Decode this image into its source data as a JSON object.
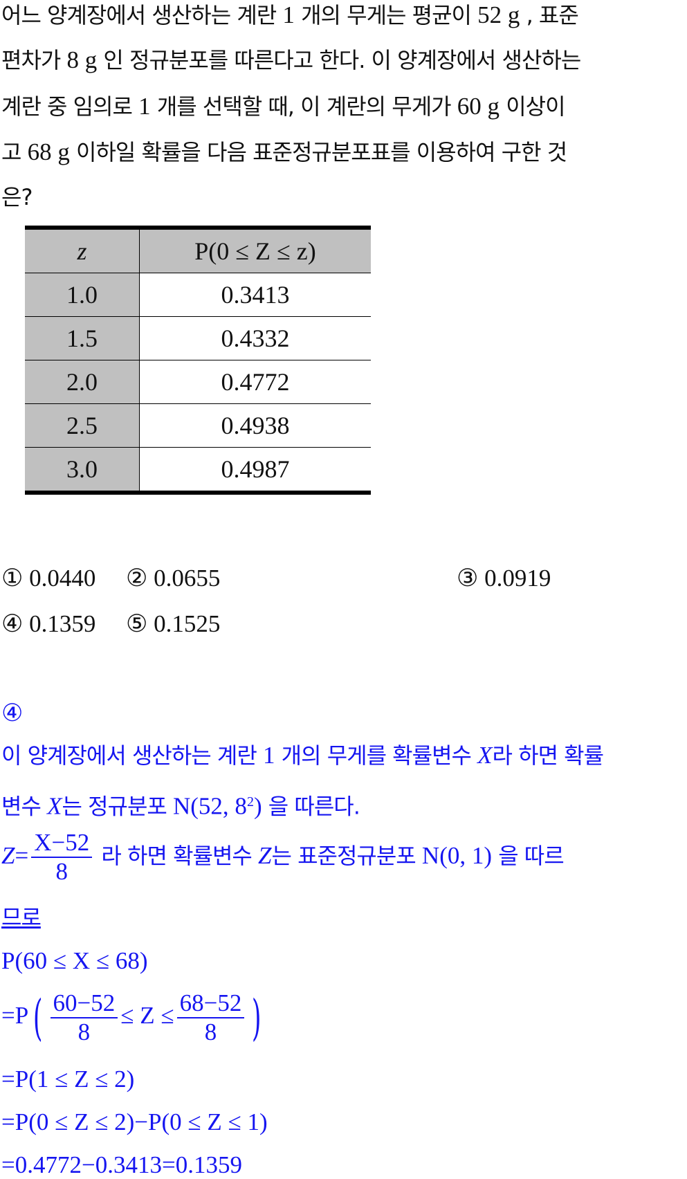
{
  "question": {
    "lines": [
      [
        "어느 양계장에서 생산하는 계란 ",
        "1",
        " 개의 무게는 평균이 ",
        "52 g",
        " , 표준"
      ],
      [
        "편차가 ",
        "8 g",
        " 인 정규분포를 따른다고 한다. 이 양계장에서 생산하는"
      ],
      [
        "계란 중 임의로 ",
        "1",
        " 개를 선택할 때, 이 계란의 무게가 ",
        "60 g",
        "  이상이"
      ],
      [
        "고 ",
        "68 g",
        "  이하일 확률을 다음 표준정규분포표를 이용하여 구한 것"
      ],
      [
        "은?"
      ]
    ]
  },
  "table": {
    "headers": [
      "z",
      "P(0 ≤ Z ≤ z)"
    ],
    "rows": [
      [
        "1.0",
        "0.3413"
      ],
      [
        "1.5",
        "0.4332"
      ],
      [
        "2.0",
        "0.4772"
      ],
      [
        "2.5",
        "0.4938"
      ],
      [
        "3.0",
        "0.4987"
      ]
    ]
  },
  "choices": [
    {
      "marker": "①",
      "value": "0.0440"
    },
    {
      "marker": "②",
      "value": "0.0655"
    },
    {
      "marker": "③",
      "value": "0.0919"
    },
    {
      "marker": "④",
      "value": "0.1359"
    },
    {
      "marker": "⑤",
      "value": "0.1525"
    }
  ],
  "answer": "④",
  "explanation": {
    "l1": [
      "이 양계장에서 생산하는 계란 ",
      "1",
      " 개의 무게를 확률변수 ",
      "X",
      "라 하면 확률"
    ],
    "l2": [
      "변수 ",
      "X",
      "는 정규분포 ",
      "N(52,  8",
      "2",
      ")",
      " 을 따른다."
    ],
    "l3": [
      "Z",
      "=",
      "X−52",
      "8",
      " 라 하면 확률변수 ",
      "Z",
      "는 표준정규분포 ",
      "N(0,  1)",
      " 을 따르"
    ],
    "l4": "므로",
    "l5": "P(60 ≤ X ≤ 68)",
    "l6": [
      "=P",
      "60−52",
      "8",
      "≤ Z ≤",
      "68−52",
      "8"
    ],
    "l7": "=P(1 ≤ Z ≤ 2)",
    "l8": "=P(0 ≤ Z ≤ 2)−P(0 ≤ Z ≤ 1)",
    "l9": "=0.4772−0.3413=0.1359"
  },
  "colors": {
    "text": "#111111",
    "solution": "#1515f0",
    "table_shade": "#c0c0c0"
  }
}
